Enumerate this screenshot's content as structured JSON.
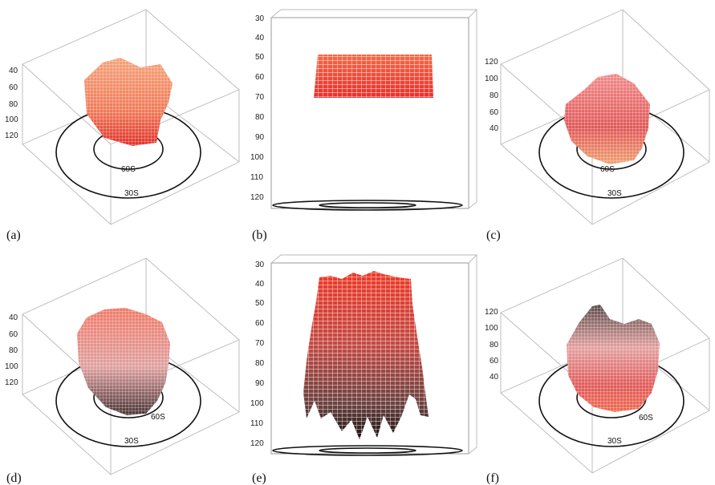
{
  "panels": [
    {
      "label": "(a)",
      "view": "oblique-down",
      "ticks": [
        "40",
        "60",
        "80",
        "100",
        "120"
      ],
      "rings": [
        "60S",
        "30S"
      ]
    },
    {
      "label": "(b)",
      "view": "side",
      "ticks": [
        "30",
        "40",
        "50",
        "60",
        "70",
        "80",
        "90",
        "100",
        "110",
        "120"
      ]
    },
    {
      "label": "(c)",
      "view": "oblique-up",
      "ticks": [
        "120",
        "100",
        "80",
        "60",
        "40"
      ],
      "rings": [
        "60S",
        "30S"
      ]
    },
    {
      "label": "(d)",
      "view": "oblique-down",
      "ticks": [
        "40",
        "60",
        "80",
        "100",
        "120"
      ],
      "rings": [
        "60S",
        "30S"
      ]
    },
    {
      "label": "(e)",
      "view": "side",
      "ticks": [
        "30",
        "40",
        "50",
        "60",
        "70",
        "80",
        "90",
        "100",
        "110",
        "120"
      ]
    },
    {
      "label": "(f)",
      "view": "oblique-up",
      "ticks": [
        "120",
        "100",
        "80",
        "60",
        "40"
      ],
      "rings": [
        "60S",
        "30S"
      ]
    }
  ],
  "colors": {
    "top": "#f08060",
    "mid": "#e8442e",
    "dark": "#3a1a16",
    "pink": "#e36b6b"
  }
}
